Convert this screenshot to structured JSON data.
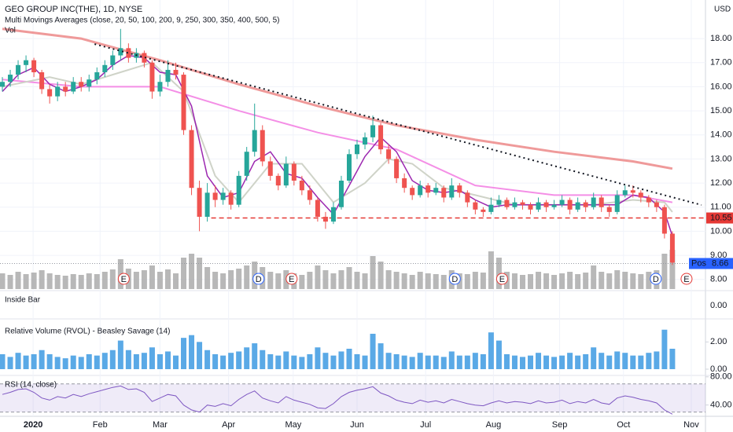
{
  "chart_data": {
    "type": "candlestick",
    "title": "GEO GROUP INC(THE), 1D, NYSE",
    "indicator_label": "Multi Movings Averages (close, 20, 50, 100, 200, 9, 250, 300, 350, 400, 500, 5)",
    "volume_label": "Vol",
    "currency": "USD",
    "up_color": "#26a69a",
    "down_color": "#ef5350",
    "ylim": [
      7.6,
      19.6
    ],
    "yticks": [
      {
        "value": 8,
        "label": "8.00"
      },
      {
        "value": 9,
        "label": "9.00"
      },
      {
        "value": 10,
        "label": "10.00"
      },
      {
        "value": 11,
        "label": "11.00"
      },
      {
        "value": 12,
        "label": "12.00"
      },
      {
        "value": 13,
        "label": "13.00"
      },
      {
        "value": 14,
        "label": "14.00"
      },
      {
        "value": 15,
        "label": "15.00"
      },
      {
        "value": 16,
        "label": "16.00"
      },
      {
        "value": 17,
        "label": "17.00"
      },
      {
        "value": 18,
        "label": "18.00"
      }
    ],
    "xlim": [
      -0.3,
      89.2
    ],
    "xticks": [
      {
        "value": 3.9,
        "label": "2020"
      },
      {
        "value": 12.4,
        "label": "Feb"
      },
      {
        "value": 20,
        "label": "Mar"
      },
      {
        "value": 28.7,
        "label": "Apr"
      },
      {
        "value": 36.9,
        "label": "May"
      },
      {
        "value": 45,
        "label": "Jun"
      },
      {
        "value": 53.7,
        "label": "Jul"
      },
      {
        "value": 62.3,
        "label": "Aug"
      },
      {
        "value": 70.7,
        "label": "Sep"
      },
      {
        "value": 78.8,
        "label": "Oct"
      },
      {
        "value": 87.4,
        "label": "Nov"
      }
    ],
    "ohlc": [
      [
        16.0,
        16.4,
        15.8,
        16.2
      ],
      [
        16.2,
        16.7,
        16.0,
        16.5
      ],
      [
        16.5,
        17.1,
        16.3,
        16.9
      ],
      [
        16.9,
        17.3,
        16.6,
        17.1
      ],
      [
        17.1,
        17.2,
        16.4,
        16.6
      ],
      [
        16.6,
        16.7,
        15.7,
        15.9
      ],
      [
        15.9,
        16.1,
        15.3,
        15.6
      ],
      [
        15.6,
        16.2,
        15.4,
        16.0
      ],
      [
        16.0,
        16.2,
        15.6,
        15.8
      ],
      [
        15.8,
        16.4,
        15.7,
        16.2
      ],
      [
        16.2,
        16.4,
        15.8,
        16.0
      ],
      [
        16.0,
        16.5,
        15.8,
        16.3
      ],
      [
        16.3,
        16.8,
        16.1,
        16.6
      ],
      [
        16.6,
        17.1,
        16.4,
        16.9
      ],
      [
        16.9,
        17.5,
        16.7,
        17.3
      ],
      [
        17.3,
        18.4,
        17.1,
        17.6
      ],
      [
        17.6,
        17.8,
        17.0,
        17.2
      ],
      [
        17.2,
        17.6,
        17.0,
        17.4
      ],
      [
        17.4,
        17.5,
        16.8,
        17.0
      ],
      [
        17.0,
        17.1,
        15.5,
        15.8
      ],
      [
        15.8,
        16.5,
        15.6,
        16.2
      ],
      [
        16.2,
        17.1,
        16.0,
        16.7
      ],
      [
        16.7,
        17.0,
        16.3,
        16.5
      ],
      [
        16.5,
        16.6,
        14.0,
        14.2
      ],
      [
        14.2,
        14.4,
        11.5,
        11.8
      ],
      [
        11.8,
        12.1,
        10.0,
        10.6
      ],
      [
        10.6,
        12.0,
        10.4,
        11.6
      ],
      [
        11.6,
        11.9,
        11.0,
        11.3
      ],
      [
        11.3,
        11.8,
        11.1,
        11.6
      ],
      [
        11.6,
        11.7,
        10.9,
        11.1
      ],
      [
        11.1,
        12.5,
        11.0,
        12.3
      ],
      [
        12.3,
        13.5,
        12.1,
        13.3
      ],
      [
        13.3,
        15.3,
        13.1,
        14.2
      ],
      [
        14.2,
        14.4,
        12.7,
        12.9
      ],
      [
        12.9,
        13.1,
        12.1,
        12.3
      ],
      [
        12.3,
        12.4,
        11.7,
        11.9
      ],
      [
        11.9,
        13.1,
        11.8,
        12.8
      ],
      [
        12.8,
        12.9,
        11.9,
        12.1
      ],
      [
        12.1,
        12.3,
        11.5,
        11.7
      ],
      [
        11.7,
        11.9,
        11.1,
        11.3
      ],
      [
        11.3,
        11.4,
        10.4,
        10.6
      ],
      [
        10.6,
        10.8,
        10.1,
        10.4
      ],
      [
        10.4,
        11.2,
        10.3,
        11.0
      ],
      [
        11.0,
        12.3,
        10.9,
        12.1
      ],
      [
        12.1,
        13.4,
        12.0,
        13.2
      ],
      [
        13.2,
        13.8,
        13.0,
        13.6
      ],
      [
        13.6,
        14.1,
        13.4,
        13.9
      ],
      [
        13.9,
        14.8,
        13.7,
        14.4
      ],
      [
        14.4,
        14.5,
        13.2,
        13.4
      ],
      [
        13.4,
        13.6,
        12.8,
        13.0
      ],
      [
        13.0,
        13.1,
        12.0,
        12.2
      ],
      [
        12.2,
        12.4,
        11.6,
        11.8
      ],
      [
        11.8,
        11.9,
        11.3,
        11.5
      ],
      [
        11.5,
        12.1,
        11.4,
        11.9
      ],
      [
        11.9,
        12.0,
        11.4,
        11.6
      ],
      [
        11.6,
        12.0,
        11.5,
        11.8
      ],
      [
        11.8,
        11.9,
        11.2,
        11.4
      ],
      [
        11.4,
        12.2,
        11.3,
        11.9
      ],
      [
        11.9,
        12.0,
        11.4,
        11.6
      ],
      [
        11.6,
        11.7,
        11.0,
        11.2
      ],
      [
        11.2,
        11.3,
        10.7,
        10.9
      ],
      [
        10.9,
        11.0,
        10.6,
        10.8
      ],
      [
        10.8,
        11.4,
        10.7,
        11.1
      ],
      [
        11.1,
        11.5,
        11.0,
        11.3
      ],
      [
        11.3,
        11.4,
        10.9,
        11.0
      ],
      [
        11.0,
        11.4,
        10.9,
        11.2
      ],
      [
        11.2,
        11.3,
        10.9,
        11.1
      ],
      [
        11.1,
        11.2,
        10.7,
        10.9
      ],
      [
        10.9,
        11.4,
        10.8,
        11.2
      ],
      [
        11.2,
        11.3,
        10.8,
        11.0
      ],
      [
        11.0,
        11.3,
        10.9,
        11.1
      ],
      [
        11.1,
        11.5,
        11.0,
        11.3
      ],
      [
        11.3,
        11.4,
        10.7,
        10.9
      ],
      [
        10.9,
        11.4,
        10.8,
        11.2
      ],
      [
        11.2,
        11.3,
        10.8,
        11.0
      ],
      [
        11.0,
        11.6,
        10.9,
        11.4
      ],
      [
        11.4,
        11.5,
        10.8,
        11.0
      ],
      [
        11.0,
        11.1,
        10.6,
        10.8
      ],
      [
        10.8,
        11.7,
        10.7,
        11.5
      ],
      [
        11.5,
        11.9,
        11.4,
        11.7
      ],
      [
        11.7,
        11.9,
        11.4,
        11.6
      ],
      [
        11.6,
        11.7,
        11.2,
        11.4
      ],
      [
        11.4,
        11.5,
        11.0,
        11.2
      ],
      [
        11.2,
        11.3,
        10.8,
        11.0
      ],
      [
        11.0,
        11.1,
        9.7,
        9.9
      ],
      [
        9.9,
        10.0,
        8.6,
        8.7
      ]
    ],
    "moving_averages": [
      {
        "color": "#ef9a9a",
        "width": 3,
        "x": [
          0,
          10,
          20,
          30,
          40,
          50,
          60,
          70,
          80,
          85
        ],
        "values": [
          18.4,
          18.0,
          17.1,
          16.1,
          15.2,
          14.4,
          13.8,
          13.3,
          12.9,
          12.6
        ]
      },
      {
        "color": "#f48fe6",
        "width": 2,
        "x": [
          0,
          10,
          20,
          30,
          40,
          50,
          60,
          70,
          80,
          85
        ],
        "values": [
          16.3,
          16.0,
          16.0,
          15.0,
          14.1,
          13.4,
          11.9,
          11.5,
          11.5,
          11.2
        ]
      },
      {
        "color": "#cfd3c8",
        "width": 2,
        "x": [
          0,
          6,
          10,
          15,
          19,
          23,
          27,
          30,
          34,
          38,
          42,
          46,
          49,
          52,
          56,
          60,
          65,
          70,
          75,
          80,
          84,
          85
        ],
        "values": [
          16.0,
          16.4,
          16.1,
          16.6,
          17.0,
          15.8,
          12.3,
          11.2,
          12.8,
          12.8,
          11.2,
          12.0,
          13.0,
          12.8,
          11.8,
          11.5,
          11.1,
          11.1,
          11.1,
          11.3,
          11.2,
          10.8
        ]
      },
      {
        "color": "#9c27b0",
        "width": 1.5,
        "x": [
          0,
          2,
          4,
          6,
          8,
          10,
          12,
          14,
          16,
          18,
          20,
          22,
          24,
          26,
          28,
          30,
          32,
          34,
          36,
          38,
          40,
          42,
          44,
          46,
          48,
          50,
          52,
          54,
          56,
          58,
          60,
          62,
          64,
          66,
          68,
          70,
          72,
          74,
          76,
          78,
          80,
          82,
          84,
          85
        ],
        "values": [
          15.8,
          16.5,
          16.8,
          16.1,
          15.8,
          16.0,
          16.3,
          16.9,
          17.3,
          17.2,
          16.6,
          16.5,
          15.2,
          12.3,
          11.4,
          11.6,
          12.9,
          13.3,
          12.4,
          12.2,
          11.4,
          10.7,
          11.9,
          13.1,
          13.9,
          13.3,
          12.1,
          11.7,
          11.6,
          11.7,
          11.3,
          11.0,
          11.1,
          11.1,
          11.1,
          11.1,
          11.1,
          11.1,
          11.1,
          11.1,
          11.5,
          11.4,
          10.8,
          9.8
        ]
      }
    ],
    "trendline": {
      "x": [
        11.7,
        88.7
      ],
      "values": [
        17.77,
        11.09
      ]
    },
    "support": {
      "x": 26.5,
      "value": 10.55
    },
    "post": {
      "label": "Post",
      "value": 8.66
    },
    "events": [
      {
        "label": "E",
        "bar": 15.4
      },
      {
        "label": "D",
        "bar": 32.5
      },
      {
        "label": "E",
        "bar": 36.7
      },
      {
        "label": "D",
        "bar": 57.4
      },
      {
        "label": "E",
        "bar": 63.4
      },
      {
        "label": "D",
        "bar": 82.9
      },
      {
        "label": "E",
        "bar": 86.8
      }
    ],
    "volume": {
      "color": "#a6a6a6",
      "ylim": [
        0,
        100
      ],
      "values": [
        20,
        18,
        22,
        19,
        21,
        24,
        20,
        18,
        17,
        19,
        18,
        20,
        19,
        22,
        25,
        38,
        26,
        22,
        24,
        30,
        22,
        25,
        20,
        40,
        45,
        40,
        28,
        22,
        20,
        24,
        26,
        30,
        35,
        28,
        22,
        20,
        24,
        20,
        18,
        22,
        30,
        24,
        20,
        24,
        28,
        22,
        20,
        42,
        35,
        24,
        22,
        20,
        18,
        22,
        20,
        19,
        18,
        24,
        20,
        19,
        22,
        21,
        48,
        40,
        22,
        20,
        18,
        19,
        22,
        20,
        18,
        20,
        22,
        19,
        21,
        30,
        22,
        20,
        24,
        22,
        20,
        19,
        22,
        24,
        45,
        50
      ]
    },
    "inside_bar": {
      "title": "Inside Bar",
      "ylim": [
        -1,
        1
      ],
      "yticks": [
        {
          "value": 0,
          "label": "0.00"
        }
      ]
    },
    "rvol": {
      "title": "Relative Volume (RVOL) - Beasley Savage (14)",
      "color": "#5aa9e6",
      "ylim": [
        0,
        3
      ],
      "yticks": [
        {
          "value": 0,
          "label": "0.00"
        },
        {
          "value": 2,
          "label": "2.00"
        }
      ],
      "values": [
        1.1,
        0.9,
        1.2,
        1.0,
        1.1,
        1.4,
        1.1,
        0.9,
        0.8,
        1.0,
        0.9,
        1.1,
        1.0,
        1.2,
        1.4,
        2.1,
        1.4,
        1.1,
        1.2,
        1.6,
        1.1,
        1.3,
        1.0,
        2.3,
        2.5,
        2.0,
        1.4,
        1.1,
        1.0,
        1.2,
        1.3,
        1.6,
        1.9,
        1.4,
        1.1,
        1.0,
        1.3,
        1.0,
        0.9,
        1.1,
        1.6,
        1.2,
        1.0,
        1.3,
        1.5,
        1.1,
        1.0,
        2.6,
        1.9,
        1.2,
        1.1,
        1.0,
        0.9,
        1.2,
        1.0,
        1.0,
        0.9,
        1.3,
        1.0,
        1.0,
        1.2,
        1.1,
        2.7,
        2.1,
        1.1,
        1.0,
        0.9,
        1.0,
        1.2,
        1.0,
        0.9,
        1.0,
        1.2,
        1.0,
        1.1,
        1.6,
        1.2,
        1.0,
        1.3,
        1.2,
        1.0,
        1.0,
        1.2,
        1.3,
        2.9,
        1.5
      ]
    },
    "rsi": {
      "title": "RSI (14, close)",
      "color": "#7e57c2",
      "band": [
        30,
        70
      ],
      "ylim": [
        24,
        82
      ],
      "yticks": [
        {
          "value": 80,
          "label": "80.00"
        },
        {
          "value": 40,
          "label": "40.00"
        }
      ],
      "values": [
        55,
        58,
        62,
        63,
        58,
        50,
        47,
        52,
        50,
        55,
        52,
        56,
        59,
        62,
        65,
        67,
        62,
        63,
        58,
        45,
        50,
        55,
        53,
        40,
        33,
        30,
        40,
        38,
        42,
        39,
        48,
        55,
        60,
        50,
        46,
        43,
        52,
        47,
        44,
        41,
        36,
        35,
        42,
        52,
        58,
        61,
        63,
        66,
        57,
        53,
        47,
        44,
        42,
        47,
        44,
        46,
        43,
        48,
        45,
        42,
        40,
        39,
        43,
        46,
        43,
        45,
        44,
        42,
        46,
        43,
        44,
        47,
        42,
        45,
        43,
        48,
        43,
        41,
        50,
        53,
        51,
        48,
        46,
        43,
        33,
        27
      ]
    }
  }
}
